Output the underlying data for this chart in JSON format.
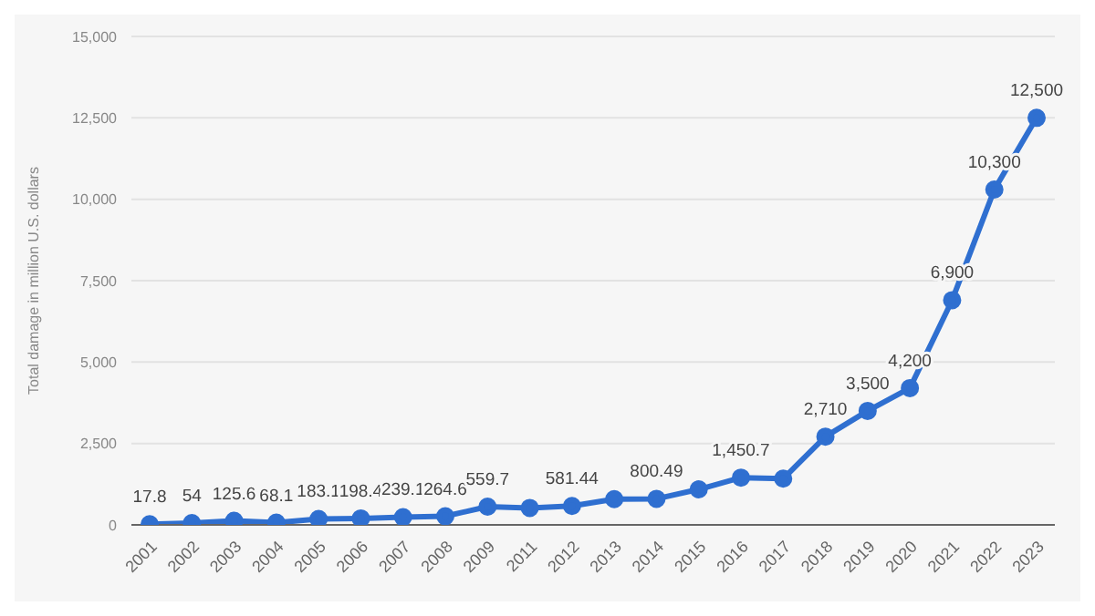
{
  "chart_data": {
    "type": "line",
    "ylabel": "Total damage in million U.S. dollars",
    "categories": [
      "2001",
      "2002",
      "2003",
      "2004",
      "2005",
      "2006",
      "2007",
      "2008",
      "2009",
      "2011",
      "2012",
      "2013",
      "2014",
      "2015",
      "2016",
      "2017",
      "2018",
      "2019",
      "2020",
      "2021",
      "2022",
      "2023"
    ],
    "series": [
      {
        "color": "#2f6fd0",
        "values": [
          17.8,
          54,
          125.6,
          68.1,
          183.1,
          198.4,
          239.1,
          264.6,
          559.7,
          520,
          581.44,
          790,
          800.49,
          1090,
          1450.7,
          1420,
          2710,
          3500,
          4200,
          6900,
          10300,
          12500
        ],
        "value_labels": [
          "17.8",
          "54",
          "125.6",
          "68.1",
          "183.1",
          "198.4",
          "239.1",
          "264.6",
          "559.7",
          null,
          "581.44",
          null,
          "800.49",
          null,
          "1,450.7",
          null,
          "2,710",
          "3,500",
          "4,200",
          "6,900",
          "10,300",
          "12,500"
        ]
      }
    ],
    "ylim": [
      0,
      15000
    ],
    "yticks": [
      {
        "value": 0,
        "label": "0"
      },
      {
        "value": 2500,
        "label": "2,500"
      },
      {
        "value": 5000,
        "label": "5,000"
      },
      {
        "value": 7500,
        "label": "7,500"
      },
      {
        "value": 10000,
        "label": "10,000"
      },
      {
        "value": 12500,
        "label": "12,500"
      },
      {
        "value": 15000,
        "label": "15,000"
      }
    ],
    "grid": "y",
    "marker": "circle",
    "line_style": "solid",
    "legend": false
  }
}
